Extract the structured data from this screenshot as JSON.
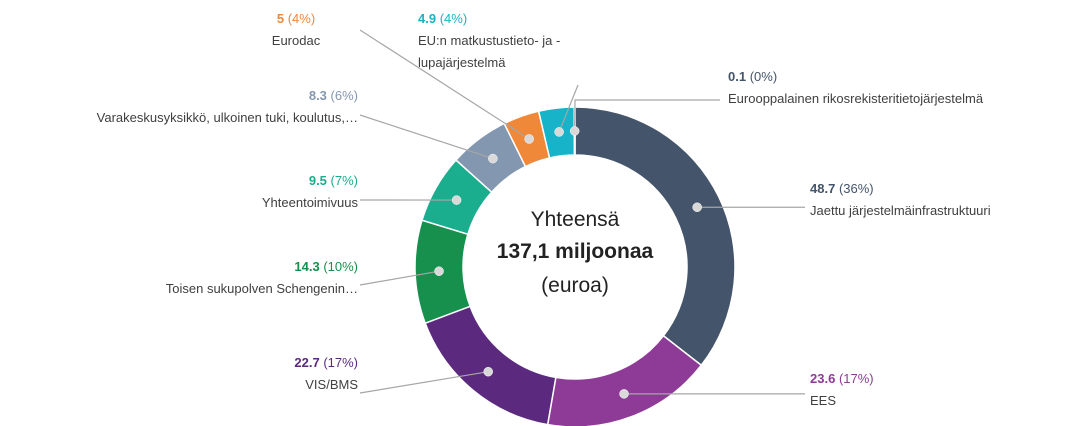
{
  "chart_data": {
    "type": "donut",
    "center_text": [
      "Yhteensä",
      "137,1 miljoonaa",
      "(euroa)"
    ],
    "categories": [
      "Jaettu järjestelmäinfrastruktuuri",
      "EES",
      "VIS/BMS",
      "Toisen sukupolven Schengenin…",
      "Yhteentoimivuus",
      "Varakeskusyksikkö, ulkoinen tuki, koulutus,…",
      "Eurodac",
      "EU:n matkustustieto- ja -\nlupajärjestelmä",
      "Eurooppalainen rikosrekisteritietojärjestelmä"
    ],
    "values": [
      48.7,
      23.6,
      22.7,
      14.3,
      9.5,
      8.3,
      5,
      4.9,
      0.1
    ],
    "percent_labels": [
      "(36%)",
      "(17%)",
      "(17%)",
      "(10%)",
      "(7%)",
      "(6%)",
      "(4%)",
      "(4%)",
      "(0%)"
    ],
    "colors": [
      "#44546a",
      "#8e3a97",
      "#5b2a7e",
      "#16904c",
      "#1aae8e",
      "#8497b0",
      "#f0883a",
      "#17b3c8",
      "#44546a"
    ]
  }
}
